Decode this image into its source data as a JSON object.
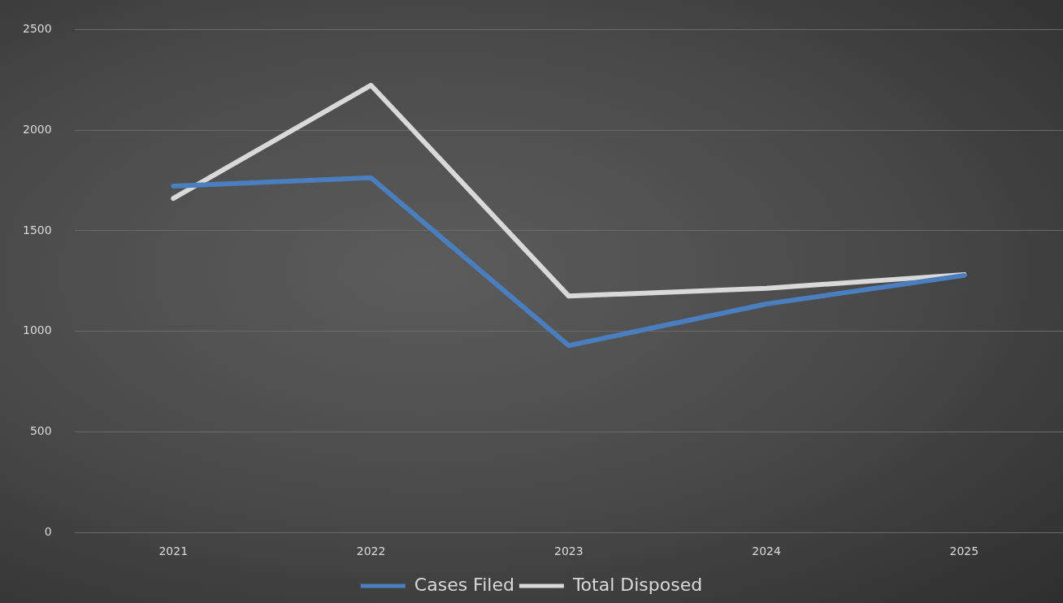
{
  "chart_data": {
    "type": "line",
    "categories": [
      "2021",
      "2022",
      "2023",
      "2024",
      "2025"
    ],
    "series": [
      {
        "name": "Cases Filed",
        "color": "#4a7ebf",
        "values": [
          1722,
          1763,
          929,
          1136,
          1278
        ]
      },
      {
        "name": "Total Disposed",
        "color": "#d9d9d9",
        "values": [
          1661,
          2223,
          1175,
          1214,
          1282
        ]
      }
    ],
    "ylim": [
      0,
      2500
    ],
    "yticks": [
      0,
      500,
      1000,
      1500,
      2000,
      2500
    ],
    "grid": "y",
    "legend": "bottom",
    "marker": "none",
    "line_style": "solid"
  }
}
